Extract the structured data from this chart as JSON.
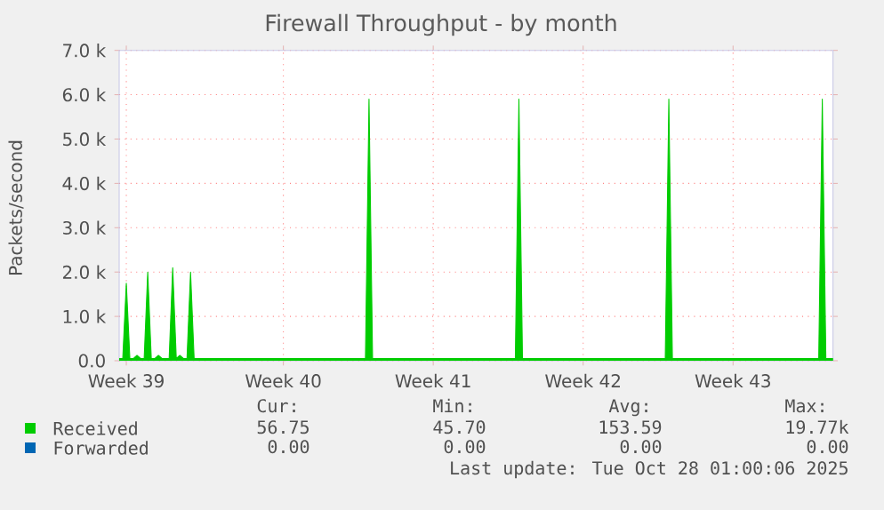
{
  "chart_data": {
    "type": "area",
    "title": "Firewall Throughput - by month",
    "ylabel": "Packets/second",
    "ylim": [
      0,
      7000
    ],
    "yticks": [
      {
        "value": 0,
        "label": "0.0"
      },
      {
        "value": 1000,
        "label": "1.0 k"
      },
      {
        "value": 2000,
        "label": "2.0 k"
      },
      {
        "value": 3000,
        "label": "3.0 k"
      },
      {
        "value": 4000,
        "label": "4.0 k"
      },
      {
        "value": 5000,
        "label": "5.0 k"
      },
      {
        "value": 6000,
        "label": "6.0 k"
      },
      {
        "value": 7000,
        "label": "7.0 k"
      }
    ],
    "grid": true,
    "legend": "bottom left",
    "categories": [
      null,
      null,
      "Week 39",
      null,
      null,
      null,
      null,
      null,
      null,
      null,
      null,
      null,
      null,
      null,
      null,
      null,
      null,
      null,
      null,
      null,
      null,
      null,
      null,
      null,
      null,
      null,
      null,
      null,
      null,
      null,
      null,
      null,
      null,
      null,
      null,
      null,
      null,
      null,
      null,
      null,
      null,
      null,
      null,
      null,
      null,
      null,
      "Week 40",
      null,
      null,
      null,
      null,
      null,
      null,
      null,
      null,
      null,
      null,
      null,
      null,
      null,
      null,
      null,
      null,
      null,
      null,
      null,
      null,
      null,
      null,
      null,
      null,
      null,
      null,
      null,
      null,
      null,
      null,
      null,
      null,
      null,
      null,
      null,
      null,
      null,
      null,
      null,
      null,
      null,
      "Week 41",
      null,
      null,
      null,
      null,
      null,
      null,
      null,
      null,
      null,
      null,
      null,
      null,
      null,
      null,
      null,
      null,
      null,
      null,
      null,
      null,
      null,
      null,
      null,
      null,
      null,
      null,
      null,
      null,
      null,
      null,
      null,
      null,
      null,
      null,
      null,
      null,
      null,
      null,
      null,
      null,
      null,
      "Week 42",
      null,
      null,
      null,
      null,
      null,
      null,
      null,
      null,
      null,
      null,
      null,
      null,
      null,
      null,
      null,
      null,
      null,
      null,
      null,
      null,
      null,
      null,
      null,
      null,
      null,
      null,
      null,
      null,
      null,
      null,
      null,
      null,
      null,
      null,
      null,
      null,
      null,
      null,
      null,
      null,
      null,
      "Week 43",
      null,
      null,
      null,
      null,
      null,
      null,
      null,
      null,
      null,
      null,
      null,
      null,
      null,
      null,
      null,
      null,
      null,
      null,
      null,
      null,
      null,
      null,
      null,
      null,
      null,
      null,
      null,
      null
    ],
    "series": [
      {
        "name": "Received",
        "color": "#00cc00",
        "values": [
          50,
          50,
          1750,
          50,
          50,
          120,
          50,
          50,
          2000,
          50,
          50,
          120,
          50,
          50,
          50,
          2100,
          50,
          120,
          50,
          50,
          2000,
          50,
          50,
          50,
          50,
          50,
          50,
          50,
          50,
          50,
          50,
          50,
          50,
          50,
          50,
          50,
          50,
          50,
          50,
          50,
          50,
          50,
          50,
          50,
          50,
          50,
          50,
          50,
          50,
          50,
          50,
          50,
          50,
          50,
          50,
          50,
          50,
          50,
          50,
          50,
          50,
          50,
          50,
          50,
          50,
          50,
          50,
          50,
          50,
          50,
          5900,
          50,
          50,
          50,
          50,
          50,
          50,
          50,
          50,
          50,
          50,
          50,
          50,
          50,
          50,
          50,
          50,
          50,
          50,
          50,
          50,
          50,
          50,
          50,
          50,
          50,
          50,
          50,
          50,
          50,
          50,
          50,
          50,
          50,
          50,
          50,
          50,
          50,
          50,
          50,
          50,
          50,
          5900,
          50,
          50,
          50,
          50,
          50,
          50,
          50,
          50,
          50,
          50,
          50,
          50,
          50,
          50,
          50,
          50,
          50,
          50,
          50,
          50,
          50,
          50,
          50,
          50,
          50,
          50,
          50,
          50,
          50,
          50,
          50,
          50,
          50,
          50,
          50,
          50,
          50,
          50,
          50,
          50,
          50,
          5900,
          50,
          50,
          50,
          50,
          50,
          50,
          50,
          50,
          50,
          50,
          50,
          50,
          50,
          50,
          50,
          50,
          50,
          50,
          50,
          50,
          50,
          50,
          50,
          50,
          50,
          50,
          50,
          50,
          50,
          50,
          50,
          50,
          50,
          50,
          50,
          50,
          50,
          50,
          50,
          50,
          50,
          50,
          5900,
          50,
          50,
          50
        ]
      },
      {
        "name": "Forwarded",
        "color": "#0066b3",
        "values": [
          null,
          null,
          null,
          null,
          null,
          null,
          null,
          null,
          null,
          null,
          null,
          null,
          null,
          null,
          null,
          null,
          null,
          null,
          null,
          null,
          null,
          null,
          null,
          null,
          null,
          null,
          null,
          null,
          null,
          null,
          null,
          null,
          null,
          null,
          null,
          null,
          null,
          null,
          null,
          null,
          null,
          null,
          null,
          null,
          null,
          null,
          null,
          null,
          null,
          null,
          null,
          null,
          null,
          null,
          null,
          null,
          null,
          null,
          null,
          null,
          null,
          null,
          null,
          null,
          null,
          null,
          null,
          null,
          null,
          null,
          null,
          null,
          null,
          null,
          null,
          null,
          null,
          null,
          null,
          null,
          null,
          null,
          null,
          null,
          null,
          null,
          null,
          null,
          null,
          null,
          null,
          null,
          null,
          null,
          null,
          null,
          null,
          null,
          null,
          null,
          null,
          null,
          null,
          null,
          null,
          null,
          null,
          null,
          null,
          null,
          null,
          null,
          null,
          null,
          null,
          null,
          null,
          null,
          null,
          null,
          null,
          null,
          null,
          null,
          null,
          null,
          null,
          null,
          null,
          null,
          null,
          null,
          null,
          null,
          null,
          null,
          null,
          null,
          null,
          null,
          null,
          null,
          null,
          null,
          null,
          null,
          null,
          null,
          null,
          null,
          null,
          null,
          null,
          null,
          null,
          null,
          null,
          null,
          null,
          null,
          null,
          null,
          null,
          null,
          null,
          null,
          null,
          null,
          null,
          null,
          null,
          null,
          null,
          null,
          null,
          null,
          null,
          null,
          null,
          null,
          null,
          null,
          null,
          null,
          null,
          null,
          null,
          null,
          null,
          null,
          null,
          null,
          null,
          null,
          null,
          null,
          null,
          null,
          null,
          null,
          null
        ]
      }
    ],
    "annotations": [
      "Cur:",
      "Min:",
      "Avg:",
      "Max:",
      "56.75",
      "45.70",
      "153.59",
      "19.77k",
      "0.00",
      "0.00",
      "0.00",
      "0.00",
      "Last update: Tue Oct 28 01:00:06 2025"
    ]
  }
}
